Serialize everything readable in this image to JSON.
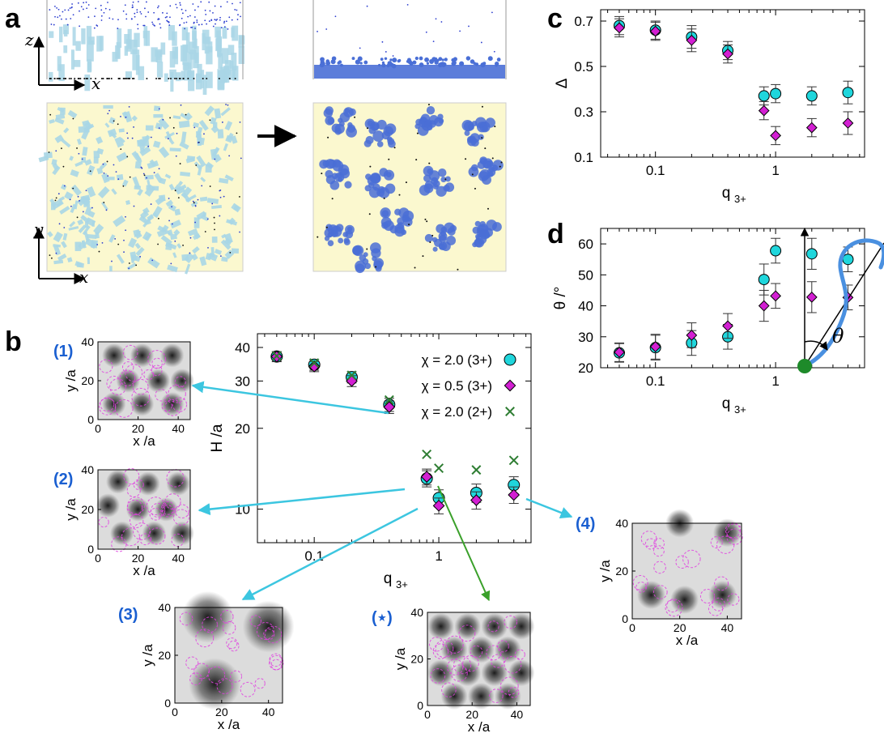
{
  "panels": {
    "a": "a",
    "b": "b",
    "c": "c",
    "d": "d"
  },
  "panel_a": {
    "axis_x": "x",
    "axis_z": "z",
    "axis_y": "y",
    "colors": {
      "bg": "#fbf8cf",
      "polymer": "#a9d6e6",
      "ion": "#2a3ccf",
      "cluster": "#4a6fd6"
    }
  },
  "insets": [
    {
      "id": "1",
      "label": "(1)",
      "x_label": "x /a",
      "y_label": "y /a",
      "x_ticks": [
        "0",
        "20",
        "40"
      ],
      "y_ticks": [
        "0",
        "20",
        "40"
      ],
      "x_range": [
        0,
        46
      ],
      "y_range": [
        0,
        40
      ],
      "dark_spots": [
        [
          8,
          33
        ],
        [
          22,
          33
        ],
        [
          37,
          33
        ],
        [
          15,
          20
        ],
        [
          30,
          20
        ],
        [
          42,
          20
        ],
        [
          8,
          8
        ],
        [
          22,
          8
        ],
        [
          37,
          8
        ]
      ]
    },
    {
      "id": "2",
      "label": "(2)",
      "x_label": "x /a",
      "y_label": "y /a",
      "x_ticks": [
        "0",
        "20",
        "40"
      ],
      "y_ticks": [
        "0",
        "20",
        "40"
      ],
      "x_range": [
        0,
        46
      ],
      "y_range": [
        0,
        40
      ],
      "dark_spots": [
        [
          10,
          34
        ],
        [
          25,
          33
        ],
        [
          40,
          33
        ],
        [
          5,
          22
        ],
        [
          20,
          20
        ],
        [
          34,
          20
        ],
        [
          12,
          8
        ],
        [
          28,
          8
        ],
        [
          42,
          8
        ]
      ]
    },
    {
      "id": "3",
      "label": "(3)",
      "x_label": "x /a",
      "y_label": "y /a",
      "x_ticks": [
        "0",
        "20",
        "40"
      ],
      "y_ticks": [
        "0",
        "20",
        "40"
      ],
      "x_range": [
        0,
        46
      ],
      "y_range": [
        0,
        40
      ],
      "dark_spots": [
        [
          17,
          8
        ],
        [
          40,
          32
        ],
        [
          14,
          36
        ]
      ]
    },
    {
      "id": "star",
      "label": "(⋆)",
      "x_label": "x /a",
      "y_label": "y /a",
      "x_ticks": [
        "0",
        "20",
        "40"
      ],
      "y_ticks": [
        "0",
        "20",
        "40"
      ],
      "x_range": [
        0,
        46
      ],
      "y_range": [
        0,
        40
      ],
      "dark_spots": [
        [
          6,
          34
        ],
        [
          18,
          34
        ],
        [
          30,
          34
        ],
        [
          42,
          34
        ],
        [
          12,
          24
        ],
        [
          24,
          24
        ],
        [
          36,
          24
        ],
        [
          6,
          14
        ],
        [
          18,
          14
        ],
        [
          30,
          14
        ],
        [
          42,
          14
        ],
        [
          12,
          4
        ],
        [
          24,
          4
        ],
        [
          36,
          4
        ]
      ]
    },
    {
      "id": "4",
      "label": "(4)",
      "x_label": "x /a",
      "y_label": "y /a",
      "x_ticks": [
        "0",
        "20",
        "40"
      ],
      "y_ticks": [
        "0",
        "20",
        "40"
      ],
      "x_range": [
        0,
        46
      ],
      "y_range": [
        0,
        40
      ],
      "dark_spots": [
        [
          20,
          40
        ],
        [
          8,
          10
        ],
        [
          22,
          8
        ],
        [
          38,
          10
        ],
        [
          40,
          36
        ]
      ]
    }
  ],
  "diagram": {
    "angle_label": "θ",
    "colors": {
      "chain": "#4a90e0",
      "anchor": "#1e8a2a"
    }
  },
  "chart_data": [
    {
      "panel": "b",
      "type": "scatter",
      "xlabel": "q",
      "xlabel_sub": "3+",
      "ylabel": "H /a",
      "xscale": "log",
      "yscale": "log",
      "xlim": [
        0.035,
        5.5
      ],
      "ylim": [
        7.5,
        45
      ],
      "x_ticks": [
        "0.1",
        "1"
      ],
      "y_ticks": [
        "10",
        "20",
        "30",
        "40"
      ],
      "legend_position": "top-right",
      "series": [
        {
          "name": "χ = 2.0 (3+)",
          "marker": "circle",
          "color": "#1fd6dc",
          "x": [
            0.05,
            0.1,
            0.2,
            0.4,
            0.8,
            1.0,
            2.0,
            4.0
          ],
          "y": [
            37,
            34.5,
            31,
            24.5,
            13,
            11,
            11.5,
            12.3
          ],
          "err": [
            1.6,
            1.6,
            1.5,
            1.4,
            0.9,
            0.8,
            0.9,
            0.9
          ]
        },
        {
          "name": "χ = 0.5 (3+)",
          "marker": "diamond",
          "color": "#d21fd2",
          "x": [
            0.05,
            0.1,
            0.2,
            0.4,
            0.8,
            1.0,
            2.0,
            4.0
          ],
          "y": [
            37,
            34,
            30,
            24,
            13.2,
            10.3,
            10.8,
            11.3
          ],
          "err": [
            1.5,
            1.5,
            1.4,
            1.3,
            0.9,
            0.7,
            0.8,
            0.8
          ]
        },
        {
          "name": "χ = 2.0 (2+)",
          "marker": "cross",
          "color": "#2e7d32",
          "x": [
            0.05,
            0.1,
            0.2,
            0.4,
            0.8,
            1.0,
            2.0,
            4.0
          ],
          "y": [
            37.2,
            35,
            31.5,
            25.5,
            16,
            14.2,
            14,
            15.2
          ],
          "err": [
            0,
            0,
            0,
            0,
            0,
            0,
            0,
            0
          ]
        }
      ]
    },
    {
      "panel": "c",
      "type": "scatter",
      "xlabel": "q",
      "xlabel_sub": "3+",
      "ylabel": "Δ",
      "xscale": "log",
      "xlim": [
        0.035,
        5.5
      ],
      "ylim": [
        0.1,
        0.75
      ],
      "x_ticks": [
        "0.1",
        "1"
      ],
      "y_ticks": [
        "0.1",
        "0.3",
        "0.5",
        "0.7"
      ],
      "series": [
        {
          "name": "χ = 2.0 (3+)",
          "marker": "circle",
          "color": "#1fd6dc",
          "x": [
            0.05,
            0.1,
            0.2,
            0.4,
            0.8,
            1.0,
            2.0,
            4.0
          ],
          "y": [
            0.68,
            0.66,
            0.63,
            0.57,
            0.37,
            0.38,
            0.37,
            0.385
          ],
          "err": [
            0.04,
            0.04,
            0.05,
            0.04,
            0.04,
            0.04,
            0.04,
            0.05
          ]
        },
        {
          "name": "χ = 0.5 (3+)",
          "marker": "diamond",
          "color": "#d21fd2",
          "x": [
            0.05,
            0.1,
            0.2,
            0.4,
            0.8,
            1.0,
            2.0,
            4.0
          ],
          "y": [
            0.67,
            0.655,
            0.615,
            0.555,
            0.305,
            0.195,
            0.23,
            0.25
          ],
          "err": [
            0.04,
            0.04,
            0.05,
            0.04,
            0.04,
            0.04,
            0.04,
            0.05
          ]
        }
      ]
    },
    {
      "panel": "d",
      "type": "scatter",
      "xlabel": "q",
      "xlabel_sub": "3+",
      "ylabel": "θ /°",
      "xscale": "log",
      "xlim": [
        0.035,
        5.5
      ],
      "ylim": [
        20,
        65
      ],
      "x_ticks": [
        "0.1",
        "1"
      ],
      "y_ticks": [
        "20",
        "30",
        "40",
        "50",
        "60"
      ],
      "series": [
        {
          "name": "χ = 2.0 (3+)",
          "marker": "circle",
          "color": "#1fd6dc",
          "x": [
            0.05,
            0.1,
            0.2,
            0.4,
            0.8,
            1.0,
            2.0,
            4.0
          ],
          "y": [
            24.8,
            26.5,
            28,
            30,
            48.5,
            57.8,
            56.8,
            55
          ],
          "err": [
            3,
            4,
            4,
            4,
            5,
            4,
            5,
            4
          ]
        },
        {
          "name": "χ = 0.5 (3+)",
          "marker": "diamond",
          "color": "#d21fd2",
          "x": [
            0.05,
            0.1,
            0.2,
            0.4,
            0.8,
            1.0,
            2.0,
            4.0
          ],
          "y": [
            25,
            26.8,
            30.5,
            33.5,
            40,
            43.2,
            42.8,
            42.7
          ],
          "err": [
            3,
            4,
            4,
            4,
            5,
            4,
            5,
            4
          ]
        }
      ]
    }
  ]
}
